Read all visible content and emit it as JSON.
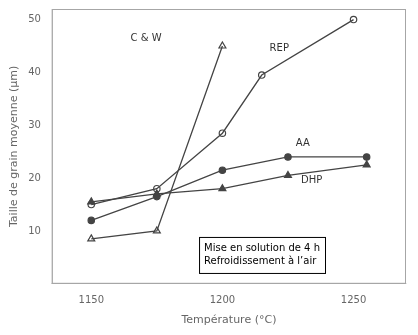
{
  "chart_data": {
    "type": "line",
    "xlabel": "Température (°C)",
    "ylabel": "Taille de grain moyenne (μm)",
    "xlim": [
      1135,
      1270
    ],
    "ylim": [
      0,
      52
    ],
    "xticks": [
      1150,
      1200,
      1250
    ],
    "yticks": [
      10,
      20,
      30,
      40,
      50
    ],
    "grid": false,
    "series": [
      {
        "name": "C & W",
        "color": "#444444",
        "marker": "triangle-open",
        "x": [
          1150,
          1175,
          1200
        ],
        "values": [
          8.5,
          10.0,
          45.0
        ],
        "label_x": 1165,
        "label_y": 46.5
      },
      {
        "name": "REP",
        "color": "#444444",
        "marker": "circle-open",
        "x": [
          1150,
          1175,
          1200,
          1215,
          1250
        ],
        "values": [
          15.0,
          18.0,
          28.5,
          39.5,
          50.0
        ],
        "label_x": 1218,
        "label_y": 44.5
      },
      {
        "name": "AA",
        "color": "#444444",
        "marker": "circle",
        "x": [
          1150,
          1175,
          1200,
          1225,
          1255
        ],
        "values": [
          12.0,
          16.5,
          21.5,
          24.0,
          24.0
        ],
        "label_x": 1228,
        "label_y": 26.5
      },
      {
        "name": "DHP",
        "color": "#444444",
        "marker": "triangle",
        "x": [
          1150,
          1175,
          1200,
          1225,
          1255
        ],
        "values": [
          15.5,
          17.0,
          18.0,
          20.5,
          22.5
        ],
        "label_x": 1230,
        "label_y": 19.5
      }
    ],
    "annotation": {
      "text": "Mise en solution de 4 h\nRefroidissement à l’air",
      "x": 1193,
      "y": 3.0
    }
  }
}
